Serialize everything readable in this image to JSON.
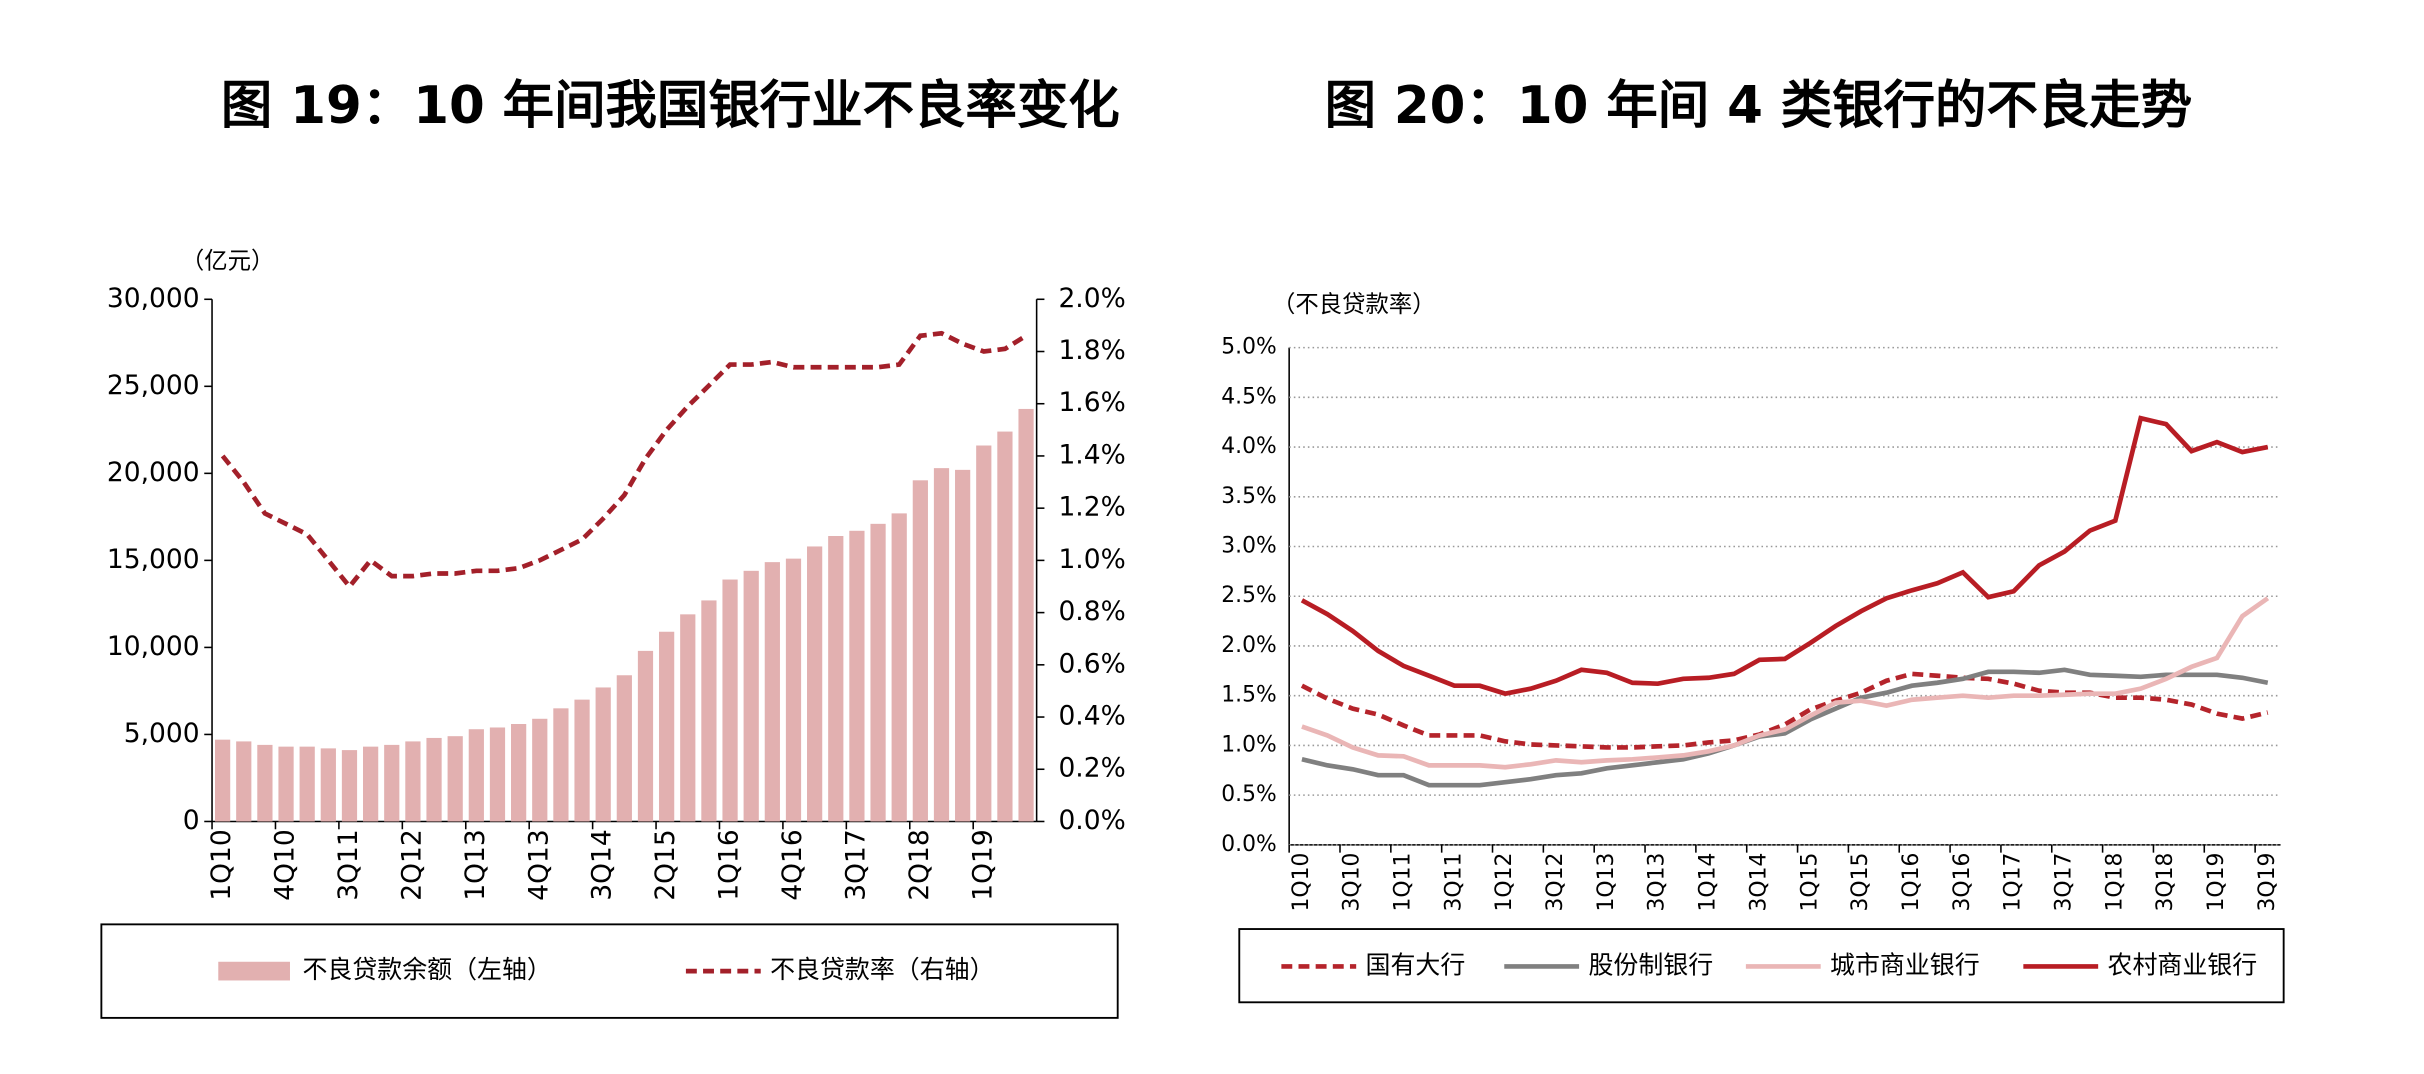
{
  "chart_data": [
    {
      "type": "bar",
      "title": "图 19：10 年间我国银行业不良率变化",
      "ylabel": "（亿元）",
      "categories": [
        "1Q10",
        null,
        null,
        "4Q10",
        null,
        null,
        "3Q11",
        null,
        null,
        "2Q12",
        null,
        null,
        "1Q13",
        null,
        null,
        "4Q13",
        null,
        null,
        "3Q14",
        null,
        null,
        "2Q15",
        null,
        null,
        "1Q16",
        null,
        null,
        "4Q16",
        null,
        null,
        "3Q17",
        null,
        null,
        "2Q18",
        null,
        null,
        "1Q19",
        null,
        null
      ],
      "series": [
        {
          "name": "不良贷款余额（左轴）",
          "type": "bar",
          "color": "#e2b0b0",
          "values": [
            4700,
            4600,
            4400,
            4300,
            4300,
            4200,
            4100,
            4300,
            4400,
            4600,
            4800,
            4900,
            5300,
            5400,
            5600,
            5900,
            6500,
            7000,
            7700,
            8400,
            9800,
            10900,
            11900,
            12700,
            13900,
            14400,
            14900,
            15100,
            15800,
            16400,
            16700,
            17100,
            17700,
            19600,
            20300,
            20200,
            21600,
            22400,
            23700
          ]
        },
        {
          "name": "不良贷款率（右轴）",
          "type": "line",
          "axis": "y2",
          "dash": true,
          "color": "#a3202a",
          "values": [
            1.4,
            1.3,
            1.18,
            1.14,
            1.1,
            1.0,
            0.9,
            1.0,
            0.94,
            0.94,
            0.95,
            0.95,
            0.96,
            0.96,
            0.97,
            1.0,
            1.04,
            1.08,
            1.16,
            1.25,
            1.39,
            1.5,
            1.59,
            1.67,
            1.75,
            1.75,
            1.76,
            1.74,
            1.74,
            1.74,
            1.74,
            1.74,
            1.75,
            1.86,
            1.87,
            1.83,
            1.8,
            1.81,
            1.86
          ]
        }
      ],
      "ylim": [
        0,
        30000
      ],
      "yticks": [
        0,
        {
          "value": 5000,
          "label": "5,000"
        },
        {
          "value": 10000,
          "label": "10,000"
        },
        {
          "value": 15000,
          "label": "15,000"
        },
        {
          "value": 20000,
          "label": "20,000"
        },
        {
          "value": 25000,
          "label": "25,000"
        },
        {
          "value": 30000,
          "label": "30,000"
        }
      ],
      "y2lim": [
        0,
        2
      ],
      "y2ticks": [
        {
          "value": 0,
          "label": "0.0%"
        },
        {
          "value": 0.2,
          "label": "0.2%"
        },
        {
          "value": 0.4,
          "label": "0.4%"
        },
        {
          "value": 0.6,
          "label": "0.6%"
        },
        {
          "value": 0.8,
          "label": "0.8%"
        },
        {
          "value": 1.0,
          "label": "1.0%"
        },
        {
          "value": 1.2,
          "label": "1.2%"
        },
        {
          "value": 1.4,
          "label": "1.4%"
        },
        {
          "value": 1.6,
          "label": "1.6%"
        },
        {
          "value": 1.8,
          "label": "1.8%"
        },
        {
          "value": 2.0,
          "label": "2.0%"
        }
      ],
      "grid": false,
      "legend": "bottom"
    },
    {
      "type": "line",
      "title": "图 20：10 年间 4 类银行的不良走势",
      "ylabel": "（不良贷款率）",
      "categories": [
        "1Q10",
        null,
        "3Q10",
        null,
        "1Q11",
        null,
        "3Q11",
        null,
        "1Q12",
        null,
        "3Q12",
        null,
        "1Q13",
        null,
        "3Q13",
        null,
        "1Q14",
        null,
        "3Q14",
        null,
        "1Q15",
        null,
        "3Q15",
        null,
        "1Q16",
        null,
        "3Q16",
        null,
        "1Q17",
        null,
        "3Q17",
        null,
        "1Q18",
        null,
        "3Q18",
        null,
        "1Q19",
        null,
        "3Q19"
      ],
      "series": [
        {
          "name": "国有大行",
          "dash": true,
          "color": "#b5242b",
          "values": [
            1.6,
            1.47,
            1.37,
            1.31,
            1.2,
            1.1,
            1.1,
            1.1,
            1.04,
            1.01,
            1.0,
            0.99,
            0.98,
            0.98,
            0.99,
            1.0,
            1.03,
            1.05,
            1.11,
            1.21,
            1.36,
            1.45,
            1.53,
            1.65,
            1.72,
            1.7,
            1.68,
            1.67,
            1.62,
            1.55,
            1.53,
            1.53,
            1.48,
            1.48,
            1.46,
            1.41,
            1.32,
            1.27,
            1.33
          ]
        },
        {
          "name": "股份制银行",
          "dash": false,
          "color": "#808080",
          "values": [
            0.86,
            0.8,
            0.76,
            0.7,
            0.7,
            0.6,
            0.6,
            0.6,
            0.63,
            0.66,
            0.7,
            0.72,
            0.77,
            0.8,
            0.83,
            0.86,
            0.92,
            1.0,
            1.09,
            1.12,
            1.26,
            1.37,
            1.48,
            1.53,
            1.6,
            1.63,
            1.67,
            1.74,
            1.74,
            1.73,
            1.76,
            1.71,
            1.7,
            1.69,
            1.71,
            1.71,
            1.71,
            1.68,
            1.63
          ]
        },
        {
          "name": "城市商业银行",
          "dash": false,
          "color": "#eab6b6",
          "values": [
            1.19,
            1.1,
            0.98,
            0.9,
            0.89,
            0.8,
            0.8,
            0.8,
            0.78,
            0.81,
            0.85,
            0.83,
            0.85,
            0.86,
            0.88,
            0.9,
            0.94,
            1.0,
            1.1,
            1.16,
            1.3,
            1.43,
            1.45,
            1.4,
            1.46,
            1.48,
            1.5,
            1.48,
            1.5,
            1.5,
            1.51,
            1.52,
            1.52,
            1.57,
            1.67,
            1.79,
            1.88,
            2.3,
            2.48
          ]
        },
        {
          "name": "农村商业银行",
          "dash": false,
          "color": "#b81d24",
          "values": [
            2.46,
            2.32,
            2.15,
            1.95,
            1.8,
            1.7,
            1.6,
            1.6,
            1.52,
            1.57,
            1.65,
            1.76,
            1.73,
            1.63,
            1.62,
            1.67,
            1.68,
            1.72,
            1.86,
            1.87,
            2.03,
            2.2,
            2.35,
            2.48,
            2.56,
            2.63,
            2.74,
            2.49,
            2.55,
            2.81,
            2.95,
            3.16,
            3.26,
            4.29,
            4.23,
            3.96,
            4.05,
            3.95,
            4.0
          ]
        }
      ],
      "ylim": [
        0,
        5
      ],
      "yticks": [
        {
          "value": 0,
          "label": "0.0%"
        },
        {
          "value": 0.5,
          "label": "0.5%"
        },
        {
          "value": 1.0,
          "label": "1.0%"
        },
        {
          "value": 1.5,
          "label": "1.5%"
        },
        {
          "value": 2.0,
          "label": "2.0%"
        },
        {
          "value": 2.5,
          "label": "2.5%"
        },
        {
          "value": 3.0,
          "label": "3.0%"
        },
        {
          "value": 3.5,
          "label": "3.5%"
        },
        {
          "value": 4.0,
          "label": "4.0%"
        },
        {
          "value": 4.5,
          "label": "4.5%"
        },
        {
          "value": 5.0,
          "label": "5.0%"
        }
      ],
      "grid": true,
      "legend": "bottom"
    }
  ]
}
